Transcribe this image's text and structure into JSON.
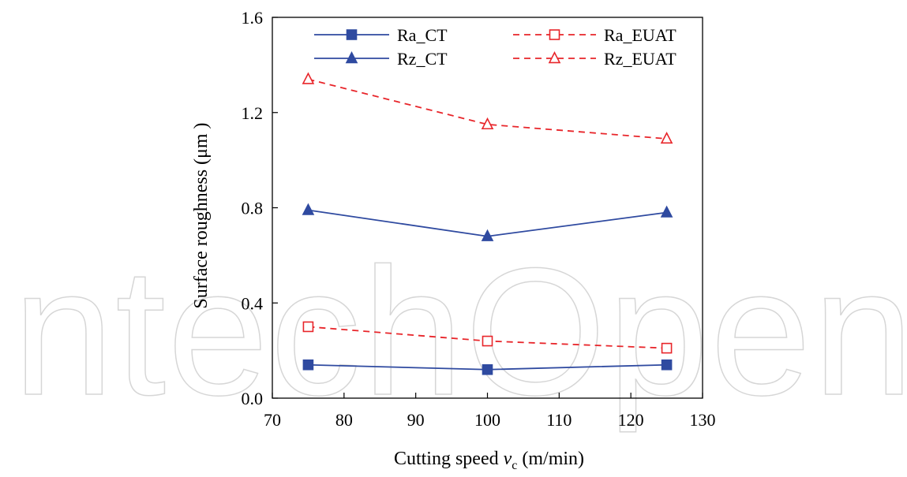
{
  "watermark": "IntechOpen",
  "chart_data": {
    "type": "line",
    "xlabel_prefix": "Cutting speed ",
    "xlabel_var": "v",
    "xlabel_sub": "c",
    "xlabel_suffix": "  (m/min)",
    "ylabel": "Surface roughness (μm )",
    "xlim": [
      70,
      130
    ],
    "ylim": [
      0,
      1.6
    ],
    "xticks": [
      "70",
      "80",
      "90",
      "100",
      "110",
      "120",
      "130"
    ],
    "yticks": [
      "0.0",
      "0.4",
      "0.8",
      "1.2",
      "1.6"
    ],
    "grid": false,
    "legend_position": "top",
    "series": [
      {
        "name": "Ra_CT",
        "x": [
          75,
          100,
          125
        ],
        "y": [
          0.14,
          0.12,
          0.14
        ],
        "color": "#2f4aa0",
        "dash": "solid",
        "marker": "square",
        "filled": true
      },
      {
        "name": "Rz_CT",
        "x": [
          75,
          100,
          125
        ],
        "y": [
          0.79,
          0.68,
          0.78
        ],
        "color": "#2f4aa0",
        "dash": "solid",
        "marker": "triangle",
        "filled": true
      },
      {
        "name": "Ra_EUAT",
        "x": [
          75,
          100,
          125
        ],
        "y": [
          0.3,
          0.24,
          0.21
        ],
        "color": "#e8252a",
        "dash": "dashed",
        "marker": "square",
        "filled": false
      },
      {
        "name": "Rz_EUAT",
        "x": [
          75,
          100,
          125
        ],
        "y": [
          1.34,
          1.15,
          1.09
        ],
        "color": "#e8252a",
        "dash": "dashed",
        "marker": "triangle",
        "filled": false
      }
    ]
  }
}
